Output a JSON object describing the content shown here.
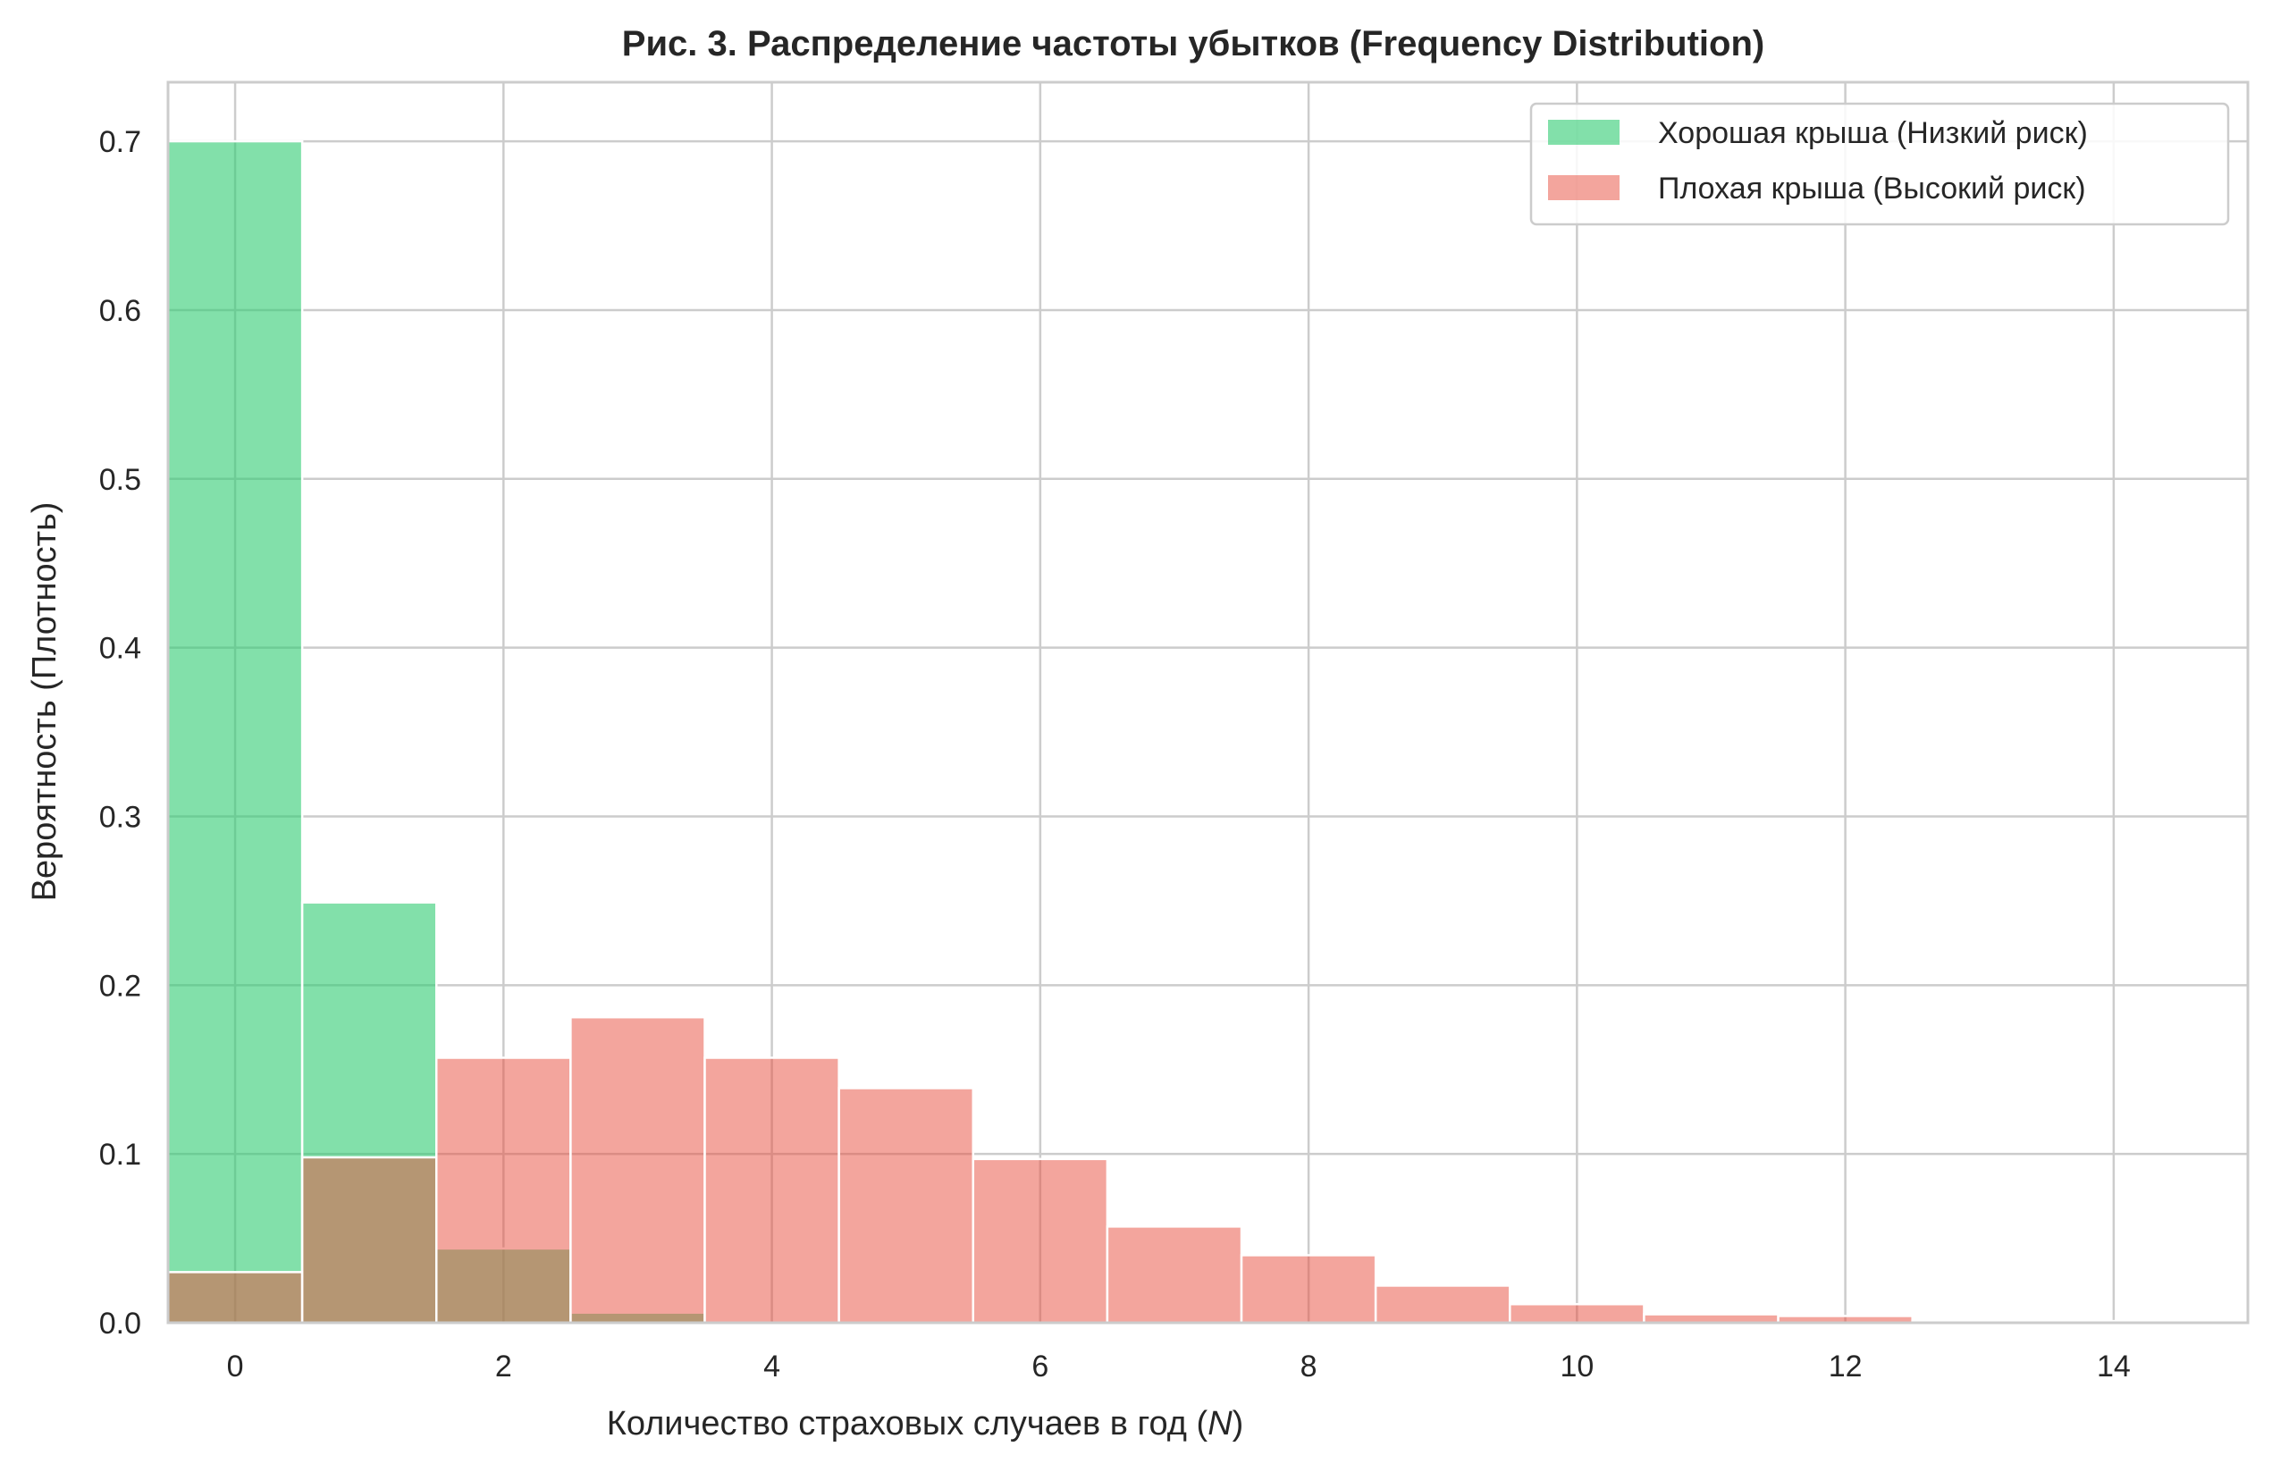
{
  "chart_data": {
    "type": "bar",
    "title": "Рис. 3. Распределение частоты убытков (Frequency Distribution)",
    "xlabel": "Количество страховых случаев в год (",
    "xlabel_var": "N",
    "xlabel_tail": ")",
    "ylabel": "Вероятность (Плотность)",
    "xlim": [
      -0.5,
      15
    ],
    "ylim": [
      0,
      0.735
    ],
    "xticks": [
      0,
      2,
      4,
      6,
      8,
      10,
      12,
      14
    ],
    "yticks": [
      0.0,
      0.1,
      0.2,
      0.3,
      0.4,
      0.5,
      0.6,
      0.7
    ],
    "grid": true,
    "legend_position": "top-right",
    "categories": [
      0,
      1,
      2,
      3,
      4,
      5,
      6,
      7,
      8,
      9,
      10,
      11,
      12,
      13,
      14
    ],
    "series": [
      {
        "name": "Хорошая крыша (Низкий риск)",
        "color": "#2ecc71",
        "opacity": 0.6,
        "values": [
          0.7,
          0.249,
          0.044,
          0.006,
          0,
          0,
          0,
          0,
          0,
          0,
          0,
          0,
          0,
          0,
          0
        ]
      },
      {
        "name": "Плохая крыша (Высокий риск)",
        "color": "#e74c3c",
        "opacity": 0.5,
        "values": [
          0.03,
          0.098,
          0.157,
          0.181,
          0.157,
          0.139,
          0.097,
          0.057,
          0.04,
          0.022,
          0.011,
          0.005,
          0.004,
          0.001,
          0.001
        ]
      }
    ]
  }
}
